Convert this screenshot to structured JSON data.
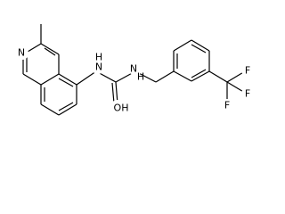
{
  "atoms": [
    {
      "label": "N"
    },
    {
      "label": "H"
    },
    {
      "label": "N"
    },
    {
      "label": "N"
    },
    {
      "label": "H"
    },
    {
      "label": "OH"
    },
    {
      "label": "F"
    },
    {
      "label": "F"
    },
    {
      "label": "F"
    }
  ]
}
